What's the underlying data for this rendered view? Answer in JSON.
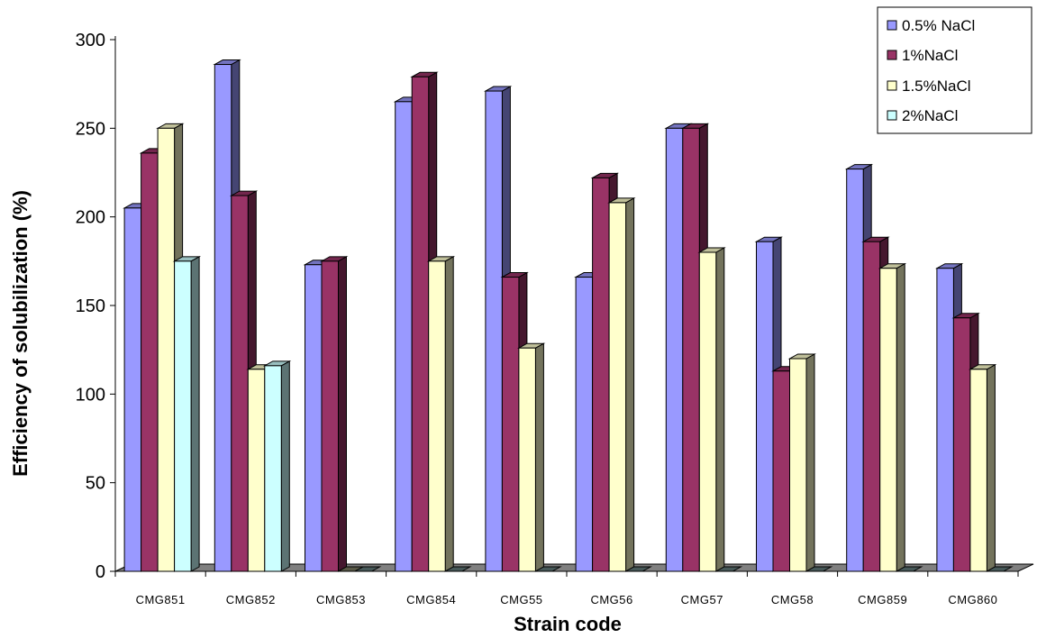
{
  "chart_data": {
    "type": "bar",
    "title": "",
    "xlabel": "Strain code",
    "ylabel": "Efficiency of solubilization (%)",
    "ylim": [
      0,
      300
    ],
    "yticks": [
      0,
      50,
      100,
      150,
      200,
      250,
      300
    ],
    "categories": [
      "CMG851",
      "CMG852",
      "CMG853",
      "CMG854",
      "CMG55",
      "CMG56",
      "CMG57",
      "CMG58",
      "CMG859",
      "CMG860"
    ],
    "series": [
      {
        "name": "0.5% NaCl",
        "color": "#9999ff",
        "values": [
          205,
          286,
          173,
          265,
          271,
          166,
          250,
          186,
          227,
          171
        ]
      },
      {
        "name": "1%NaCl",
        "color": "#993366",
        "values": [
          236,
          212,
          175,
          279,
          166,
          222,
          250,
          113,
          186,
          143
        ]
      },
      {
        "name": "1.5%NaCl",
        "color": "#ffffcc",
        "values": [
          250,
          114,
          0,
          175,
          126,
          208,
          180,
          120,
          171,
          114
        ]
      },
      {
        "name": "2%NaCl",
        "color": "#ccffff",
        "values": [
          175,
          116,
          0,
          0,
          0,
          0,
          0,
          0,
          0,
          0
        ]
      }
    ],
    "legend_position": "top-right",
    "grid": false,
    "style": "3d-clustered-columns"
  }
}
